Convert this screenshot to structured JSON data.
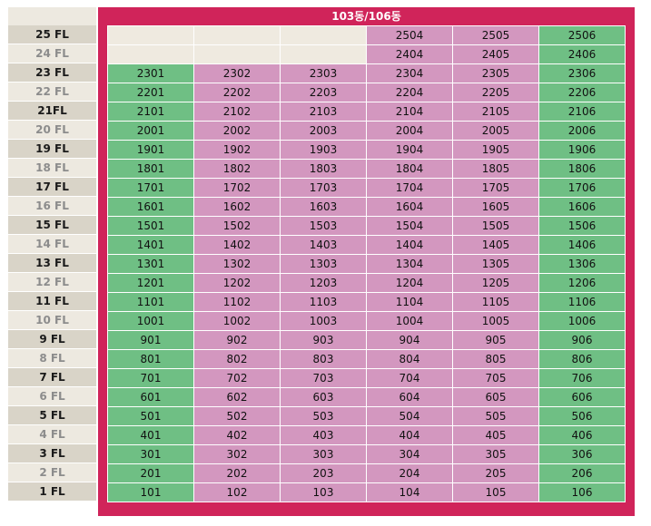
{
  "building": {
    "title": "103동/106동"
  },
  "colors": {
    "frame": "#d0245a",
    "available": "#6fbf84",
    "other": "#d397bf",
    "empty": "#efeae0"
  },
  "floors": [
    {
      "label": "25 FL",
      "tone": "dark",
      "units": [
        null,
        null,
        null,
        {
          "n": "2504",
          "c": "pink"
        },
        {
          "n": "2505",
          "c": "pink"
        },
        {
          "n": "2506",
          "c": "green"
        }
      ]
    },
    {
      "label": "24 FL",
      "tone": "light",
      "units": [
        null,
        null,
        null,
        {
          "n": "2404",
          "c": "pink"
        },
        {
          "n": "2405",
          "c": "pink"
        },
        {
          "n": "2406",
          "c": "green"
        }
      ]
    },
    {
      "label": "23 FL",
      "tone": "dark",
      "units": [
        {
          "n": "2301",
          "c": "green"
        },
        {
          "n": "2302",
          "c": "pink"
        },
        {
          "n": "2303",
          "c": "pink"
        },
        {
          "n": "2304",
          "c": "pink"
        },
        {
          "n": "2305",
          "c": "pink"
        },
        {
          "n": "2306",
          "c": "green"
        }
      ]
    },
    {
      "label": "22 FL",
      "tone": "light",
      "units": [
        {
          "n": "2201",
          "c": "green"
        },
        {
          "n": "2202",
          "c": "pink"
        },
        {
          "n": "2203",
          "c": "pink"
        },
        {
          "n": "2204",
          "c": "pink"
        },
        {
          "n": "2205",
          "c": "pink"
        },
        {
          "n": "2206",
          "c": "green"
        }
      ]
    },
    {
      "label": "21FL",
      "tone": "dark",
      "units": [
        {
          "n": "2101",
          "c": "green"
        },
        {
          "n": "2102",
          "c": "pink"
        },
        {
          "n": "2103",
          "c": "pink"
        },
        {
          "n": "2104",
          "c": "pink"
        },
        {
          "n": "2105",
          "c": "pink"
        },
        {
          "n": "2106",
          "c": "green"
        }
      ]
    },
    {
      "label": "20 FL",
      "tone": "light",
      "units": [
        {
          "n": "2001",
          "c": "green"
        },
        {
          "n": "2002",
          "c": "pink"
        },
        {
          "n": "2003",
          "c": "pink"
        },
        {
          "n": "2004",
          "c": "pink"
        },
        {
          "n": "2005",
          "c": "pink"
        },
        {
          "n": "2006",
          "c": "green"
        }
      ]
    },
    {
      "label": "19 FL",
      "tone": "dark",
      "units": [
        {
          "n": "1901",
          "c": "green"
        },
        {
          "n": "1902",
          "c": "pink"
        },
        {
          "n": "1903",
          "c": "pink"
        },
        {
          "n": "1904",
          "c": "pink"
        },
        {
          "n": "1905",
          "c": "pink"
        },
        {
          "n": "1906",
          "c": "green"
        }
      ]
    },
    {
      "label": "18 FL",
      "tone": "light",
      "units": [
        {
          "n": "1801",
          "c": "green"
        },
        {
          "n": "1802",
          "c": "pink"
        },
        {
          "n": "1803",
          "c": "pink"
        },
        {
          "n": "1804",
          "c": "pink"
        },
        {
          "n": "1805",
          "c": "pink"
        },
        {
          "n": "1806",
          "c": "green"
        }
      ]
    },
    {
      "label": "17 FL",
      "tone": "dark",
      "units": [
        {
          "n": "1701",
          "c": "green"
        },
        {
          "n": "1702",
          "c": "pink"
        },
        {
          "n": "1703",
          "c": "pink"
        },
        {
          "n": "1704",
          "c": "pink"
        },
        {
          "n": "1705",
          "c": "pink"
        },
        {
          "n": "1706",
          "c": "green"
        }
      ]
    },
    {
      "label": "16 FL",
      "tone": "light",
      "units": [
        {
          "n": "1601",
          "c": "green"
        },
        {
          "n": "1602",
          "c": "pink"
        },
        {
          "n": "1603",
          "c": "pink"
        },
        {
          "n": "1604",
          "c": "pink"
        },
        {
          "n": "1605",
          "c": "pink"
        },
        {
          "n": "1606",
          "c": "green"
        }
      ]
    },
    {
      "label": "15 FL",
      "tone": "dark",
      "units": [
        {
          "n": "1501",
          "c": "green"
        },
        {
          "n": "1502",
          "c": "pink"
        },
        {
          "n": "1503",
          "c": "pink"
        },
        {
          "n": "1504",
          "c": "pink"
        },
        {
          "n": "1505",
          "c": "pink"
        },
        {
          "n": "1506",
          "c": "green"
        }
      ]
    },
    {
      "label": "14 FL",
      "tone": "light",
      "units": [
        {
          "n": "1401",
          "c": "green"
        },
        {
          "n": "1402",
          "c": "pink"
        },
        {
          "n": "1403",
          "c": "pink"
        },
        {
          "n": "1404",
          "c": "pink"
        },
        {
          "n": "1405",
          "c": "pink"
        },
        {
          "n": "1406",
          "c": "green"
        }
      ]
    },
    {
      "label": "13 FL",
      "tone": "dark",
      "units": [
        {
          "n": "1301",
          "c": "green"
        },
        {
          "n": "1302",
          "c": "pink"
        },
        {
          "n": "1303",
          "c": "pink"
        },
        {
          "n": "1304",
          "c": "pink"
        },
        {
          "n": "1305",
          "c": "pink"
        },
        {
          "n": "1306",
          "c": "green"
        }
      ]
    },
    {
      "label": "12 FL",
      "tone": "light",
      "units": [
        {
          "n": "1201",
          "c": "green"
        },
        {
          "n": "1202",
          "c": "pink"
        },
        {
          "n": "1203",
          "c": "pink"
        },
        {
          "n": "1204",
          "c": "pink"
        },
        {
          "n": "1205",
          "c": "pink"
        },
        {
          "n": "1206",
          "c": "green"
        }
      ]
    },
    {
      "label": "11 FL",
      "tone": "dark",
      "units": [
        {
          "n": "1101",
          "c": "green"
        },
        {
          "n": "1102",
          "c": "pink"
        },
        {
          "n": "1103",
          "c": "pink"
        },
        {
          "n": "1104",
          "c": "pink"
        },
        {
          "n": "1105",
          "c": "pink"
        },
        {
          "n": "1106",
          "c": "green"
        }
      ]
    },
    {
      "label": "10 FL",
      "tone": "light",
      "units": [
        {
          "n": "1001",
          "c": "green"
        },
        {
          "n": "1002",
          "c": "pink"
        },
        {
          "n": "1003",
          "c": "pink"
        },
        {
          "n": "1004",
          "c": "pink"
        },
        {
          "n": "1005",
          "c": "pink"
        },
        {
          "n": "1006",
          "c": "green"
        }
      ]
    },
    {
      "label": "9 FL",
      "tone": "dark",
      "units": [
        {
          "n": "901",
          "c": "green"
        },
        {
          "n": "902",
          "c": "pink"
        },
        {
          "n": "903",
          "c": "pink"
        },
        {
          "n": "904",
          "c": "pink"
        },
        {
          "n": "905",
          "c": "pink"
        },
        {
          "n": "906",
          "c": "green"
        }
      ]
    },
    {
      "label": "8 FL",
      "tone": "light",
      "units": [
        {
          "n": "801",
          "c": "green"
        },
        {
          "n": "802",
          "c": "pink"
        },
        {
          "n": "803",
          "c": "pink"
        },
        {
          "n": "804",
          "c": "pink"
        },
        {
          "n": "805",
          "c": "pink"
        },
        {
          "n": "806",
          "c": "green"
        }
      ]
    },
    {
      "label": "7 FL",
      "tone": "dark",
      "units": [
        {
          "n": "701",
          "c": "green"
        },
        {
          "n": "702",
          "c": "pink"
        },
        {
          "n": "703",
          "c": "pink"
        },
        {
          "n": "704",
          "c": "pink"
        },
        {
          "n": "705",
          "c": "pink"
        },
        {
          "n": "706",
          "c": "green"
        }
      ]
    },
    {
      "label": "6 FL",
      "tone": "light",
      "units": [
        {
          "n": "601",
          "c": "green"
        },
        {
          "n": "602",
          "c": "pink"
        },
        {
          "n": "603",
          "c": "pink"
        },
        {
          "n": "604",
          "c": "pink"
        },
        {
          "n": "605",
          "c": "pink"
        },
        {
          "n": "606",
          "c": "green"
        }
      ]
    },
    {
      "label": "5 FL",
      "tone": "dark",
      "units": [
        {
          "n": "501",
          "c": "green"
        },
        {
          "n": "502",
          "c": "pink"
        },
        {
          "n": "503",
          "c": "pink"
        },
        {
          "n": "504",
          "c": "pink"
        },
        {
          "n": "505",
          "c": "pink"
        },
        {
          "n": "506",
          "c": "green"
        }
      ]
    },
    {
      "label": "4 FL",
      "tone": "light",
      "units": [
        {
          "n": "401",
          "c": "green"
        },
        {
          "n": "402",
          "c": "pink"
        },
        {
          "n": "403",
          "c": "pink"
        },
        {
          "n": "404",
          "c": "pink"
        },
        {
          "n": "405",
          "c": "pink"
        },
        {
          "n": "406",
          "c": "green"
        }
      ]
    },
    {
      "label": "3 FL",
      "tone": "dark",
      "units": [
        {
          "n": "301",
          "c": "green"
        },
        {
          "n": "302",
          "c": "pink"
        },
        {
          "n": "303",
          "c": "pink"
        },
        {
          "n": "304",
          "c": "pink"
        },
        {
          "n": "305",
          "c": "pink"
        },
        {
          "n": "306",
          "c": "green"
        }
      ]
    },
    {
      "label": "2 FL",
      "tone": "light",
      "units": [
        {
          "n": "201",
          "c": "green"
        },
        {
          "n": "202",
          "c": "pink"
        },
        {
          "n": "203",
          "c": "pink"
        },
        {
          "n": "204",
          "c": "pink"
        },
        {
          "n": "205",
          "c": "pink"
        },
        {
          "n": "206",
          "c": "green"
        }
      ]
    },
    {
      "label": "1 FL",
      "tone": "dark",
      "units": [
        {
          "n": "101",
          "c": "green"
        },
        {
          "n": "102",
          "c": "pink"
        },
        {
          "n": "103",
          "c": "pink"
        },
        {
          "n": "104",
          "c": "pink"
        },
        {
          "n": "105",
          "c": "pink"
        },
        {
          "n": "106",
          "c": "green"
        }
      ]
    }
  ]
}
